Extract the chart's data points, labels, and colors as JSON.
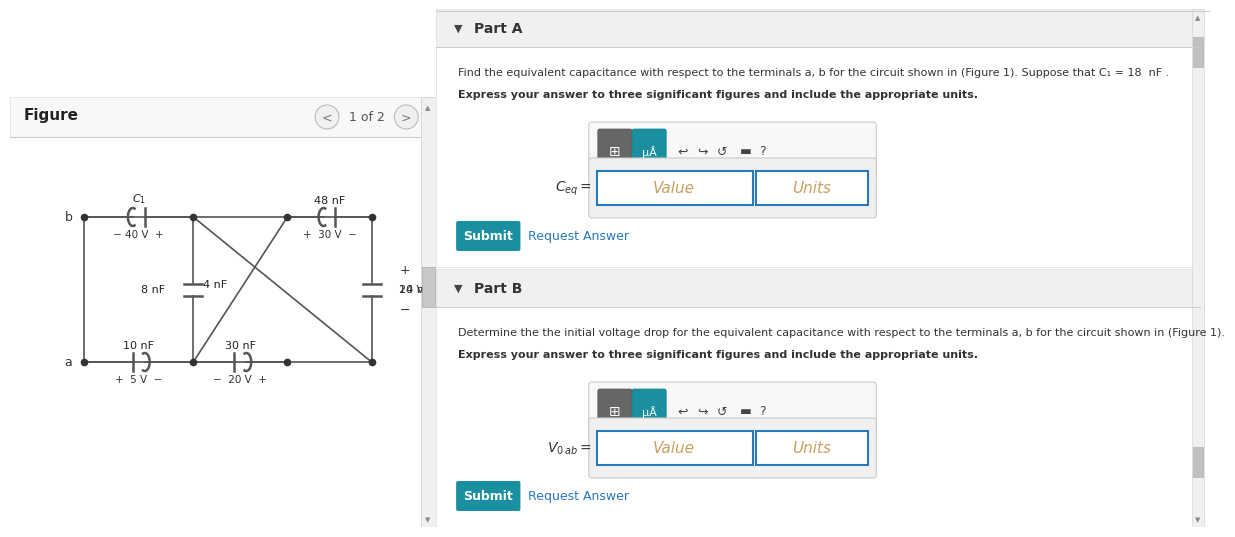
{
  "bg_color": "#ffffff",
  "fig_label": "Figure",
  "pagination": "1 of 2",
  "part_a_label": "Part A",
  "part_a_line1": "Find the equivalent capacitance with respect to the terminals a, b for the circuit shown in (Figure 1). Suppose that C₁ = 18  nF .",
  "part_a_line2": "Express your answer to three significant figures and include the appropriate units.",
  "part_b_label": "Part B",
  "part_b_line1": "Determine the the initial voltage drop for the equivalent capacitance with respect to the terminals a, b for the circuit shown in (Figure 1).",
  "part_b_line2": "Express your answer to three significant figures and include the appropriate units.",
  "submit_bg": "#1a8fa0",
  "submit_text": "Submit",
  "request_text": "Request Answer",
  "request_color": "#2878be",
  "value_text": "Value",
  "units_text": "Units",
  "input_border": "#2878be",
  "toolbar_bg": "#e8e8e8",
  "panel_header_bg": "#f2f2f2",
  "gray": "#555555",
  "lw": 1.2
}
